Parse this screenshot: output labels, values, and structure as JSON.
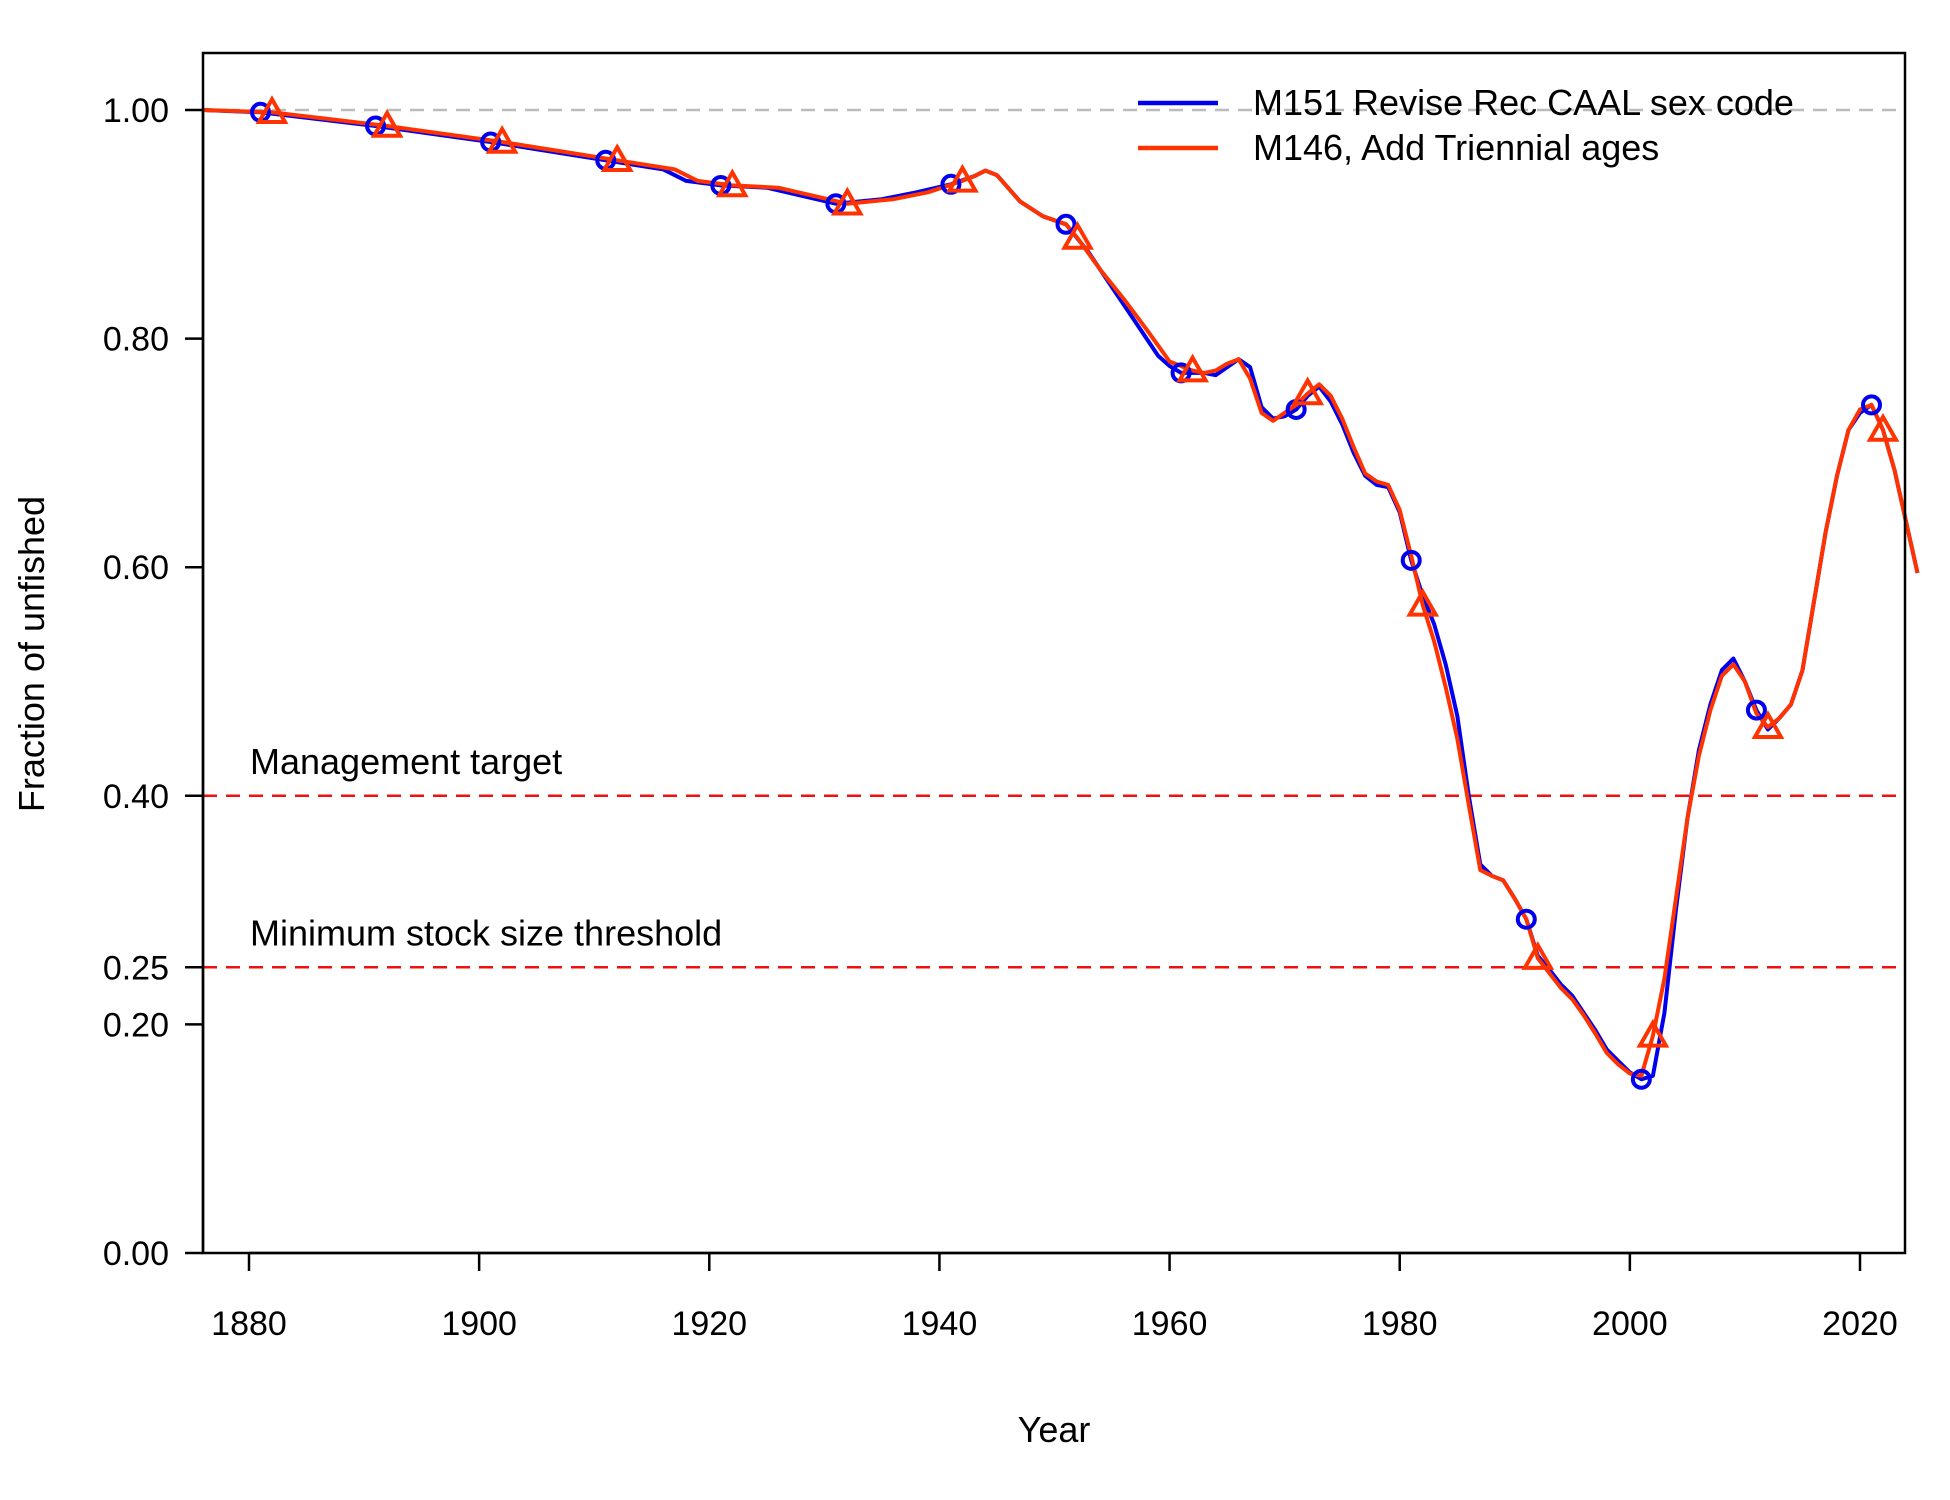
{
  "chart_data": {
    "type": "line",
    "title": "",
    "xlabel": "Year",
    "ylabel": "Fraction of unfished",
    "xlim": [
      1876,
      2025
    ],
    "ylim": [
      0,
      1.0
    ],
    "x_ticks": [
      1880,
      1900,
      1920,
      1940,
      1960,
      1980,
      2000,
      2020
    ],
    "x_tick_labels": [
      "1880",
      "1900",
      "1920",
      "1940",
      "1960",
      "1980",
      "2000",
      "2020"
    ],
    "y_ticks": [
      0,
      0.2,
      0.25,
      0.4,
      0.6,
      0.8,
      1.0
    ],
    "y_tick_labels": [
      "0.00",
      "0.20",
      "0.25",
      "0.40",
      "0.60",
      "0.80",
      "1.00"
    ],
    "grid": false,
    "legend_position": "top-right",
    "reference_lines": [
      {
        "y": 1.0,
        "color": "#bbbbbb",
        "style": "dashed",
        "label": ""
      },
      {
        "y": 0.4,
        "color": "#ee1111",
        "style": "dashed",
        "label": "Management target"
      },
      {
        "y": 0.25,
        "color": "#ee1111",
        "style": "dashed",
        "label": "Minimum stock size threshold"
      }
    ],
    "series": [
      {
        "name": "M151 Revise Rec CAAL sex code",
        "color": "#0000ee",
        "marker": "circle",
        "marker_years": [
          1881,
          1891,
          1901,
          1911,
          1921,
          1931,
          1941,
          1951,
          1961,
          1971,
          1981,
          1991,
          2001,
          2011,
          2021
        ],
        "x": [
          1876,
          1881,
          1886,
          1891,
          1896,
          1901,
          1906,
          1911,
          1916,
          1918,
          1921,
          1925,
          1928,
          1931,
          1935,
          1938,
          1941,
          1943,
          1944,
          1945,
          1947,
          1949,
          1951,
          1953,
          1955,
          1957,
          1959,
          1960,
          1961,
          1963,
          1964,
          1965,
          1966,
          1967,
          1968,
          1969,
          1970,
          1971,
          1972,
          1973,
          1974,
          1975,
          1976,
          1977,
          1978,
          1979,
          1980,
          1981,
          1982,
          1983,
          1984,
          1985,
          1986,
          1987,
          1988,
          1989,
          1990,
          1991,
          1992,
          1993,
          1994,
          1995,
          1996,
          1997,
          1998,
          1999,
          2000,
          2001,
          2002,
          2003,
          2004,
          2005,
          2006,
          2007,
          2008,
          2009,
          2010,
          2011,
          2012,
          2013,
          2014,
          2015,
          2016,
          2017,
          2018,
          2019,
          2020,
          2021,
          2022,
          2023,
          2024,
          2025
        ],
        "y": [
          1.0,
          0.998,
          0.992,
          0.986,
          0.979,
          0.972,
          0.964,
          0.956,
          0.948,
          0.938,
          0.934,
          0.932,
          0.925,
          0.918,
          0.922,
          0.928,
          0.935,
          0.942,
          0.947,
          0.943,
          0.92,
          0.907,
          0.9,
          0.875,
          0.845,
          0.815,
          0.785,
          0.776,
          0.77,
          0.77,
          0.768,
          0.775,
          0.782,
          0.775,
          0.74,
          0.73,
          0.732,
          0.738,
          0.75,
          0.758,
          0.745,
          0.725,
          0.7,
          0.68,
          0.672,
          0.67,
          0.648,
          0.606,
          0.575,
          0.55,
          0.515,
          0.47,
          0.4,
          0.34,
          0.33,
          0.326,
          0.31,
          0.292,
          0.26,
          0.248,
          0.235,
          0.225,
          0.21,
          0.195,
          0.178,
          0.168,
          0.158,
          0.152,
          0.155,
          0.21,
          0.3,
          0.38,
          0.44,
          0.48,
          0.51,
          0.52,
          0.5,
          0.475,
          0.458,
          0.468,
          0.48,
          0.51,
          0.57,
          0.63,
          0.68,
          0.72,
          0.735,
          0.742,
          0.72,
          0.685,
          0.64,
          0.595
        ]
      },
      {
        "name": "M146, Add Triennial ages",
        "color": "#ff3300",
        "marker": "triangle",
        "marker_years": [
          1882,
          1892,
          1902,
          1912,
          1922,
          1932,
          1942,
          1952,
          1962,
          1972,
          1982,
          1992,
          2002,
          2012,
          2022
        ],
        "x": [
          1876,
          1882,
          1887,
          1892,
          1897,
          1902,
          1907,
          1912,
          1917,
          1919,
          1922,
          1926,
          1929,
          1932,
          1936,
          1939,
          1942,
          1943,
          1944,
          1945,
          1947,
          1949,
          1951,
          1952,
          1954,
          1956,
          1958,
          1960,
          1962,
          1963,
          1964,
          1965,
          1966,
          1967,
          1968,
          1969,
          1970,
          1971,
          1972,
          1973,
          1974,
          1975,
          1976,
          1977,
          1978,
          1979,
          1980,
          1981,
          1982,
          1983,
          1984,
          1985,
          1986,
          1987,
          1988,
          1989,
          1990,
          1991,
          1992,
          1993,
          1994,
          1995,
          1996,
          1997,
          1998,
          1999,
          2000,
          2001,
          2002,
          2003,
          2004,
          2005,
          2006,
          2007,
          2008,
          2009,
          2010,
          2011,
          2012,
          2013,
          2014,
          2015,
          2016,
          2017,
          2018,
          2019,
          2020,
          2021,
          2022,
          2023,
          2024,
          2025
        ],
        "y": [
          1.0,
          0.998,
          0.992,
          0.986,
          0.979,
          0.972,
          0.964,
          0.956,
          0.948,
          0.938,
          0.934,
          0.932,
          0.925,
          0.918,
          0.922,
          0.928,
          0.938,
          0.942,
          0.947,
          0.943,
          0.92,
          0.907,
          0.9,
          0.888,
          0.86,
          0.835,
          0.808,
          0.78,
          0.772,
          0.77,
          0.772,
          0.778,
          0.782,
          0.765,
          0.735,
          0.728,
          0.735,
          0.742,
          0.752,
          0.76,
          0.75,
          0.73,
          0.705,
          0.682,
          0.675,
          0.672,
          0.65,
          0.61,
          0.567,
          0.535,
          0.495,
          0.45,
          0.392,
          0.335,
          0.33,
          0.326,
          0.31,
          0.292,
          0.258,
          0.245,
          0.232,
          0.222,
          0.208,
          0.192,
          0.175,
          0.165,
          0.157,
          0.155,
          0.19,
          0.24,
          0.31,
          0.38,
          0.435,
          0.475,
          0.505,
          0.515,
          0.5,
          0.472,
          0.46,
          0.468,
          0.48,
          0.51,
          0.57,
          0.63,
          0.68,
          0.72,
          0.738,
          0.742,
          0.72,
          0.685,
          0.64,
          0.595
        ]
      }
    ]
  }
}
